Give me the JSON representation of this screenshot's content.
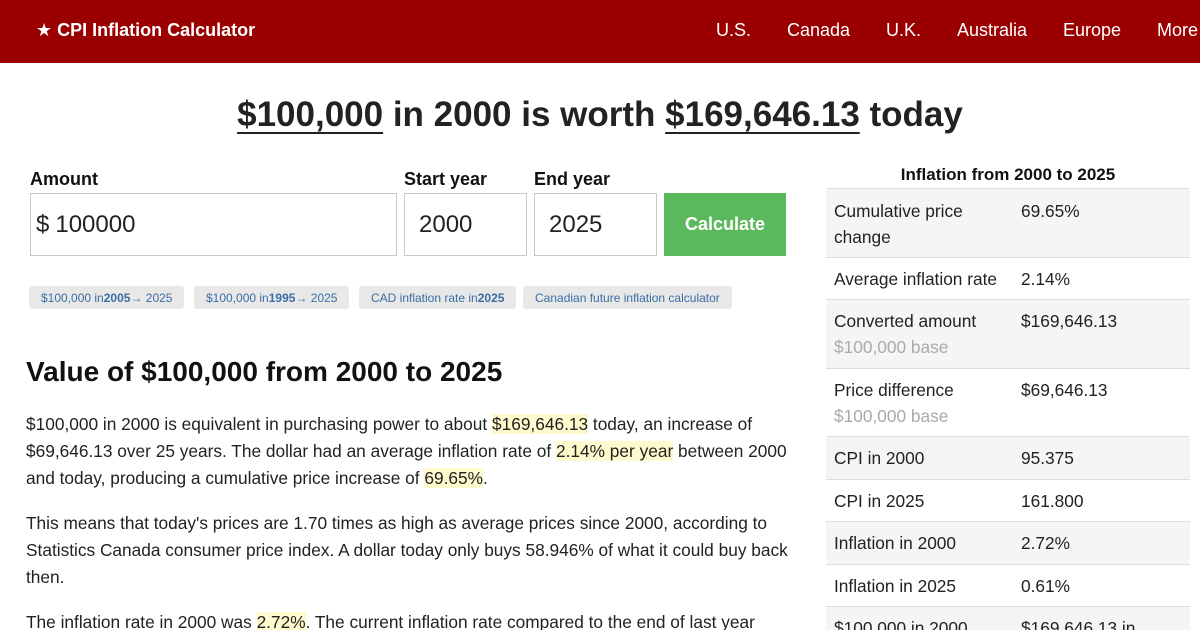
{
  "header": {
    "brand_star": "★",
    "brand": "CPI Inflation Calculator",
    "nav": [
      "U.S.",
      "Canada",
      "U.K.",
      "Australia",
      "Europe",
      "More"
    ]
  },
  "headline": {
    "amount": "$100,000",
    "mid": " in 2000 is worth ",
    "worth": "$169,646.13",
    "end": " today"
  },
  "form": {
    "amount_label": "Amount",
    "amount_prefix": "$",
    "amount_value": "100000",
    "start_label": "Start year",
    "start_value": "2000",
    "end_label": "End year",
    "end_value": "2025",
    "button": "Calculate"
  },
  "links": [
    {
      "pre": "$100,000 in ",
      "bold": "2005",
      "post": " → 2025"
    },
    {
      "pre": "$100,000 in ",
      "bold": "1995",
      "post": " → 2025"
    },
    {
      "pre": "CAD inflation rate in ",
      "bold": "2025",
      "post": ""
    },
    {
      "pre": "Canadian future inflation calculator",
      "bold": "",
      "post": ""
    }
  ],
  "section_title": "Value of $100,000 from 2000 to 2025",
  "para1": {
    "t1": "$100,000 in 2000 is equivalent in purchasing power to about ",
    "h1": "$169,646.13",
    "t2": " today, an increase of $69,646.13 over 25 years. The dollar had an average inflation rate of ",
    "h2": "2.14% per year",
    "t3": " between 2000 and today, producing a cumulative price increase of ",
    "h3": "69.65%",
    "t4": "."
  },
  "para2": "This means that today's prices are 1.70 times as high as average prices since 2000, according to Statistics Canada consumer price index. A dollar today only buys 58.946% of what it could buy back then.",
  "para3": {
    "t1": "The inflation rate in 2000 was ",
    "h1": "2.72%",
    "t2": ". The current inflation rate compared to the end of last year"
  },
  "sidebar": {
    "title": "Inflation from 2000 to 2025",
    "rows": [
      {
        "k": "Cumulative price change",
        "v": "69.65%",
        "sub": ""
      },
      {
        "k": "Average inflation rate",
        "v": "2.14%",
        "sub": ""
      },
      {
        "k": "Converted amount",
        "v": "$169,646.13",
        "sub": "$100,000 base"
      },
      {
        "k": "Price difference",
        "v": "$69,646.13",
        "sub": "$100,000 base"
      },
      {
        "k": "CPI in 2000",
        "v": "95.375",
        "sub": ""
      },
      {
        "k": "CPI in 2025",
        "v": "161.800",
        "sub": ""
      },
      {
        "k": "Inflation in 2000",
        "v": "2.72%",
        "sub": ""
      },
      {
        "k": "Inflation in 2025",
        "v": "0.61%",
        "sub": ""
      },
      {
        "k": "$100,000 in 2000",
        "v": "$169,646.13 in",
        "sub": ""
      }
    ]
  }
}
